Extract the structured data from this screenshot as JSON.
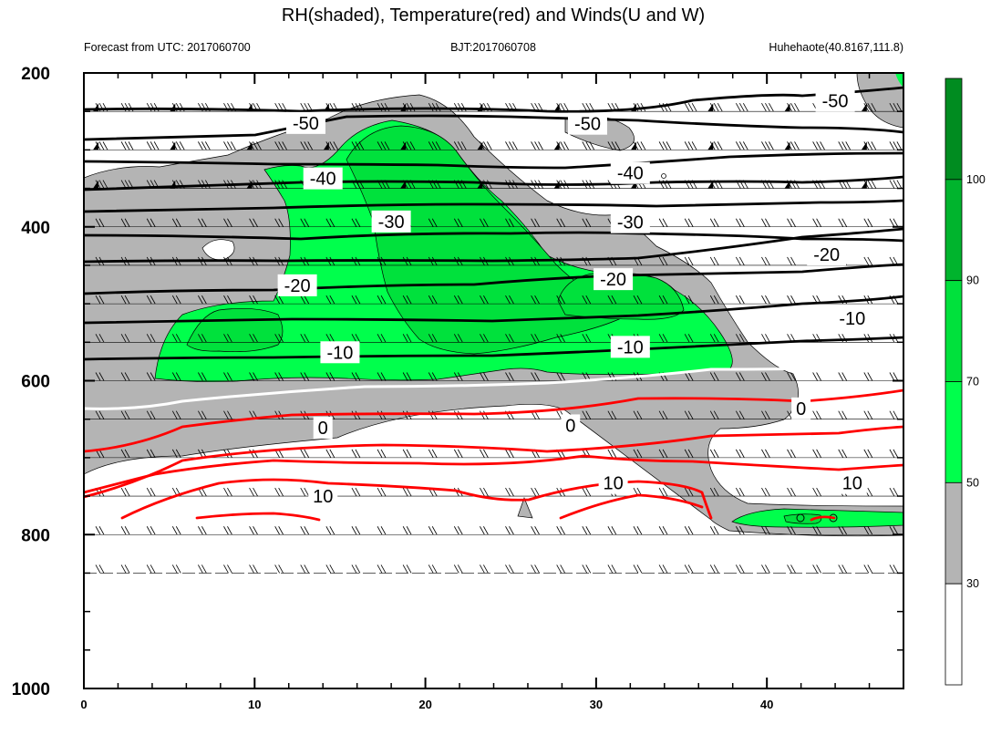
{
  "chart_data": {
    "type": "contour",
    "title": "RH(shaded), Temperature(red) and Winds(U and W)",
    "subtitle_left": "Forecast from UTC: 2017060700",
    "subtitle_center": "BJT:2017060708",
    "subtitle_right": "Huhehaote(40.8167,111.8)",
    "x_ticks": [
      "0",
      "10",
      "20",
      "30",
      "40"
    ],
    "x_tick_values": [
      0,
      10,
      20,
      30,
      40
    ],
    "xlim": [
      0,
      48
    ],
    "y_ticks": [
      "200",
      "400",
      "600",
      "800",
      "1000"
    ],
    "y_tick_values": [
      200,
      400,
      600,
      800,
      1000
    ],
    "ylim": [
      200,
      1000
    ],
    "y_inverted": true,
    "pressure_levels": [
      250,
      300,
      350,
      400,
      450,
      500,
      550,
      600,
      650,
      700,
      750,
      800,
      850
    ],
    "colorbar": {
      "ticks": [
        "30",
        "50",
        "70",
        "90",
        "100"
      ],
      "tick_values": [
        30,
        50,
        70,
        90,
        100
      ],
      "colors": [
        "#ffffff",
        "#b4b4b4",
        "#00ff4c",
        "#00e13c",
        "#00b42d",
        "#008c20"
      ]
    },
    "temperature_labels": [
      {
        "text": "-50",
        "x": 13.0,
        "y": 265
      },
      {
        "text": "-50",
        "x": 29.5,
        "y": 266
      },
      {
        "text": "-50",
        "x": 44.0,
        "y": 236
      },
      {
        "text": "-40",
        "x": 14.0,
        "y": 337
      },
      {
        "text": "-40",
        "x": 32.0,
        "y": 330
      },
      {
        "text": "-30",
        "x": 18.0,
        "y": 393
      },
      {
        "text": "-30",
        "x": 32.0,
        "y": 394
      },
      {
        "text": "-20",
        "x": 12.5,
        "y": 476
      },
      {
        "text": "-20",
        "x": 31.0,
        "y": 468
      },
      {
        "text": "-20",
        "x": 43.5,
        "y": 436
      },
      {
        "text": "-10",
        "x": 15.0,
        "y": 563
      },
      {
        "text": "-10",
        "x": 32.0,
        "y": 556
      },
      {
        "text": "-10",
        "x": 45.0,
        "y": 519
      },
      {
        "text": "0",
        "x": 14.0,
        "y": 661
      },
      {
        "text": "0",
        "x": 28.5,
        "y": 658
      },
      {
        "text": "0",
        "x": 42.0,
        "y": 636
      },
      {
        "text": "10",
        "x": 14.0,
        "y": 750
      },
      {
        "text": "10",
        "x": 31.0,
        "y": 733
      },
      {
        "text": "10",
        "x": 45.0,
        "y": 733
      }
    ]
  }
}
